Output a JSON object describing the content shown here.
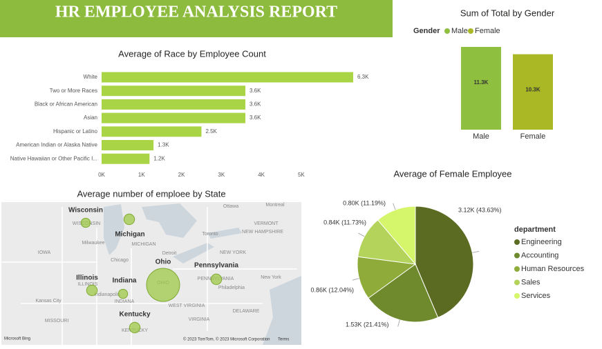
{
  "report_title": "HR EMPLOYEE ANALYSIS REPORT",
  "chart_data": [
    {
      "type": "hbar",
      "title": "Average of Race by Employee Count",
      "categories": [
        "White",
        "Two or More Races",
        "Black or African American",
        "Asian",
        "Hispanic or Latino",
        "American Indian or Alaska Native",
        "Native Hawaiian or Other Pacific I..."
      ],
      "values": [
        6300,
        3600,
        3600,
        3600,
        2500,
        1300,
        1200
      ],
      "value_labels": [
        "6.3K",
        "3.6K",
        "3.6K",
        "3.6K",
        "2.5K",
        "1.3K",
        "1.2K"
      ],
      "color": "#a9d445",
      "xlim": [
        0,
        6300
      ],
      "xticks": [
        {
          "value": 0,
          "label": "0K"
        },
        {
          "value": 1000,
          "label": "1K"
        },
        {
          "value": 2000,
          "label": "2K"
        },
        {
          "value": 3000,
          "label": "3K"
        },
        {
          "value": 4000,
          "label": "4K"
        },
        {
          "value": 5000,
          "label": "5K"
        }
      ]
    },
    {
      "type": "bar",
      "title": "Sum of Total by Gender",
      "legend_title": "Gender",
      "categories": [
        "Male",
        "Female"
      ],
      "values": [
        11300,
        10300
      ],
      "value_labels": [
        "11.3K",
        "10.3K"
      ],
      "colors": [
        "#8fbf3f",
        "#a9b824"
      ],
      "ylim": [
        0,
        11300
      ]
    },
    {
      "type": "bubble_map",
      "title": "Average number of emploee by State",
      "categories": [
        "Wisconsin",
        "Michigan",
        "Ohio",
        "Pennsylvania",
        "Illinois",
        "Indiana",
        "Kentucky"
      ],
      "values": [
        45,
        60,
        580,
        60,
        60,
        45,
        60
      ],
      "color": "#9fc94a",
      "map_labels": [
        "Ottawa",
        "Montreal",
        "VERMONT",
        "NEW HAMPSHIRE",
        "Toronto",
        "MICHIGAN",
        "Detroit",
        "Milwaukee",
        "Chicago",
        "IOWA",
        "NEW YORK",
        "OHIO",
        "PENNSYLVANIA",
        "Philadelphia",
        "New York",
        "INDIANA",
        "Indianapolis",
        "ILLINOIS",
        "WISCONSIN",
        "Kansas City",
        "MISSOURI",
        "WEST VIRGINIA",
        "VIRGINIA",
        "DELAWARE",
        "KENTUCKY"
      ],
      "attribution": "© 2023 TomTom, © 2023 Microsoft Corporation",
      "terms": "Terms",
      "brand": "Microsoft Bing"
    },
    {
      "type": "pie",
      "title": "Average of Female Employee",
      "legend_title": "department",
      "categories": [
        "Engineering",
        "Accounting",
        "Human Resources",
        "Sales",
        "Services"
      ],
      "values": [
        3120,
        1530,
        860,
        840,
        800
      ],
      "value_labels": [
        "3.12K (43.63%)",
        "1.53K (21.41%)",
        "0.86K (12.04%)",
        "0.84K (11.73%)",
        "0.80K (11.19%)"
      ],
      "colors": [
        "#5b6b22",
        "#6f8a2d",
        "#8fac3b",
        "#b3d35b",
        "#d5f56b"
      ]
    }
  ]
}
